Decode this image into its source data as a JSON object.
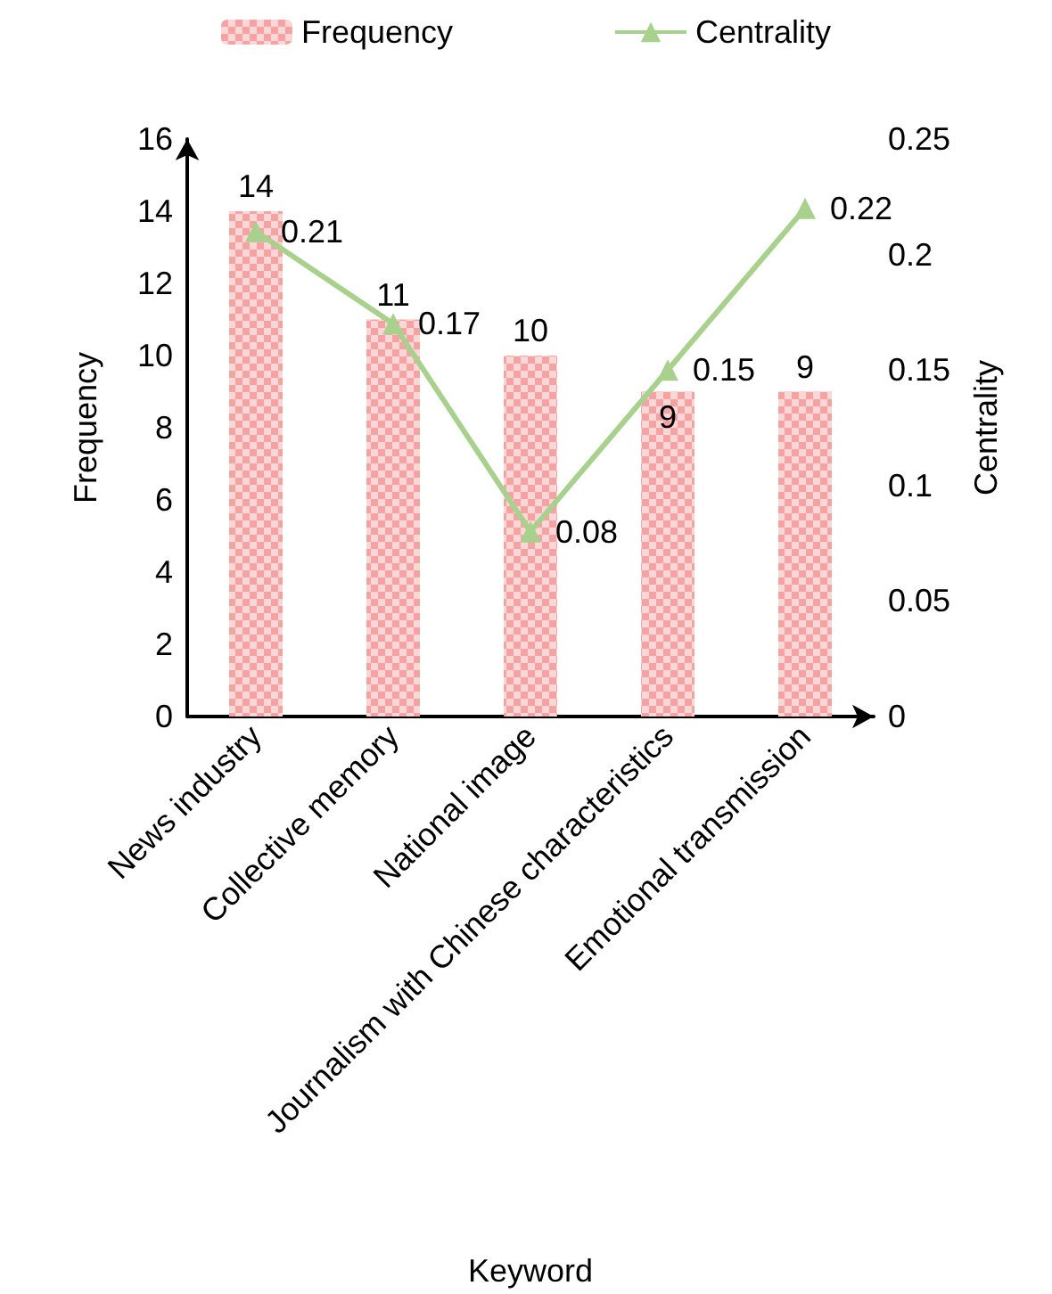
{
  "chart_data": {
    "type": "bar",
    "xlabel": "Keyword",
    "ylabel": "Frequency",
    "y2label": "Centrality",
    "categories": [
      "News industry",
      "Collective memory",
      "National image",
      "Journalism with Chinese characteristics",
      "Emotional transmission"
    ],
    "series": [
      {
        "name": "Frequency",
        "color": "#f4a3a3",
        "values": [
          14,
          11,
          10,
          9,
          9
        ]
      },
      {
        "name": "Centrality",
        "type": "line",
        "axis": "y2",
        "color": "#a9d18e",
        "marker": "triangle",
        "values": [
          0.21,
          0.17,
          0.08,
          0.15,
          0.22
        ]
      }
    ],
    "ylim": [
      0,
      16
    ],
    "yticks": [
      0,
      2,
      4,
      6,
      8,
      10,
      12,
      14,
      16
    ],
    "y2lim": [
      0,
      0.25
    ],
    "y2ticks": [
      0,
      0.05,
      0.1,
      0.15,
      0.2,
      0.25
    ],
    "data_labels": true,
    "legend": "top",
    "grid": false
  }
}
